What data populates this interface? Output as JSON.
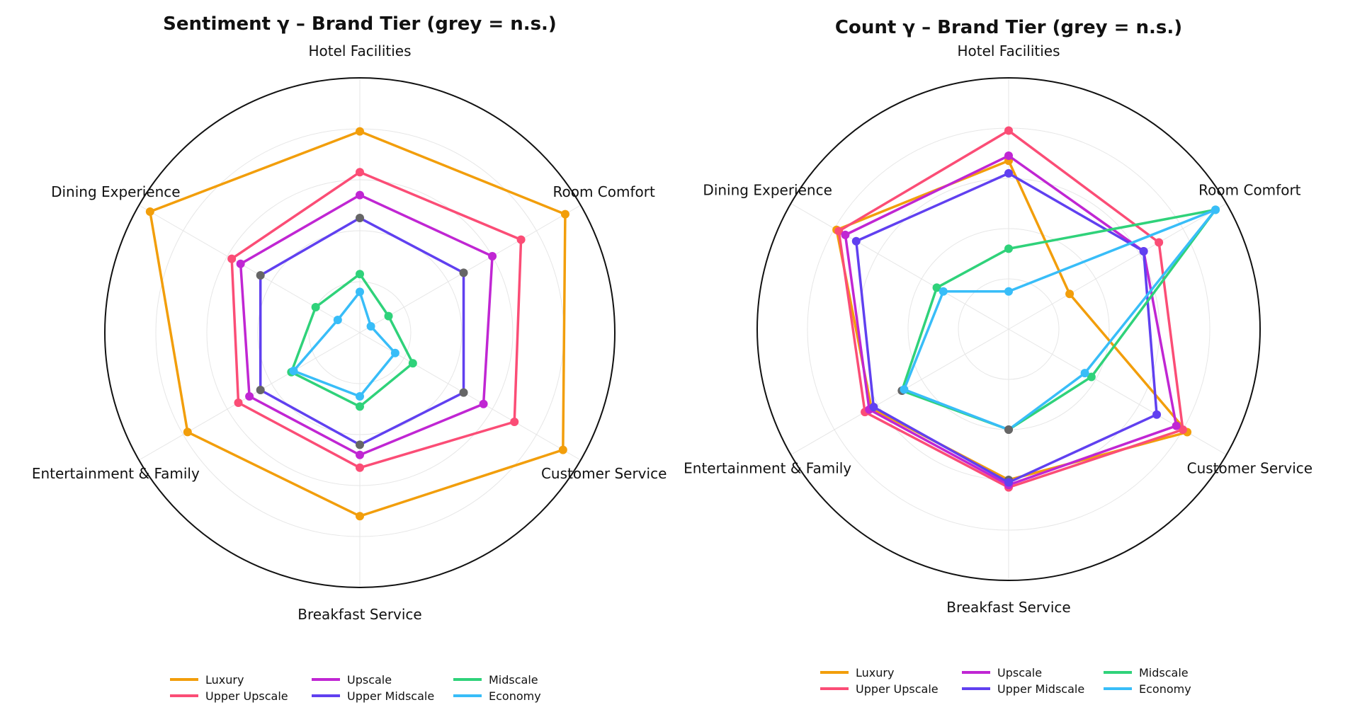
{
  "chart_data": [
    {
      "type": "radar",
      "title": "Sentiment γ – Brand Tier (grey = n.s.)",
      "axes": [
        "Hotel Facilities",
        "Room Comfort",
        "Customer Service",
        "Breakfast Service",
        "Entertainment & Family",
        "Dining Experience"
      ],
      "rlim": [
        0,
        1
      ],
      "grid": true,
      "legend_position": "bottom",
      "not_significant_color": "#666666",
      "series": [
        {
          "name": "Luxury",
          "color": "#f29e0b",
          "values": [
            0.79,
            0.93,
            0.92,
            0.72,
            0.78,
            0.95
          ],
          "ns": [
            false,
            false,
            false,
            false,
            false,
            false
          ]
        },
        {
          "name": "Upper Upscale",
          "color": "#fb4d76",
          "values": [
            0.63,
            0.73,
            0.7,
            0.53,
            0.55,
            0.58
          ],
          "ns": [
            false,
            false,
            false,
            false,
            false,
            false
          ]
        },
        {
          "name": "Upscale",
          "color": "#c026d3",
          "values": [
            0.54,
            0.6,
            0.56,
            0.48,
            0.5,
            0.54
          ],
          "ns": [
            false,
            false,
            false,
            false,
            false,
            false
          ]
        },
        {
          "name": "Upper Midscale",
          "color": "#6040f0",
          "values": [
            0.45,
            0.47,
            0.47,
            0.44,
            0.45,
            0.45
          ],
          "ns": [
            true,
            true,
            true,
            true,
            true,
            true
          ]
        },
        {
          "name": "Midscale",
          "color": "#2fd27a",
          "values": [
            0.23,
            0.13,
            0.24,
            0.29,
            0.31,
            0.2
          ],
          "ns": [
            false,
            false,
            false,
            false,
            false,
            false
          ]
        },
        {
          "name": "Economy",
          "color": "#38bdf8",
          "values": [
            0.16,
            0.05,
            0.16,
            0.25,
            0.3,
            0.1
          ],
          "ns": [
            false,
            false,
            false,
            false,
            false,
            false
          ]
        }
      ]
    },
    {
      "type": "radar",
      "title": "Count γ – Brand Tier (grey = n.s.)",
      "axes": [
        "Hotel Facilities",
        "Room Comfort",
        "Customer Service",
        "Breakfast Service",
        "Entertainment & Family",
        "Dining Experience"
      ],
      "rlim": [
        0,
        1
      ],
      "grid": true,
      "legend_position": "bottom",
      "not_significant_color": "#666666",
      "series": [
        {
          "name": "Luxury",
          "color": "#f29e0b",
          "values": [
            0.67,
            0.28,
            0.82,
            0.6,
            0.63,
            0.79
          ],
          "ns": [
            false,
            false,
            false,
            true,
            false,
            false
          ]
        },
        {
          "name": "Upper Upscale",
          "color": "#fb4d76",
          "values": [
            0.79,
            0.69,
            0.8,
            0.63,
            0.66,
            0.78
          ],
          "ns": [
            false,
            false,
            false,
            false,
            false,
            false
          ]
        },
        {
          "name": "Upscale",
          "color": "#c026d3",
          "values": [
            0.69,
            0.62,
            0.77,
            0.62,
            0.64,
            0.75
          ],
          "ns": [
            false,
            false,
            false,
            false,
            false,
            false
          ]
        },
        {
          "name": "Upper Midscale",
          "color": "#6040f0",
          "values": [
            0.62,
            0.62,
            0.68,
            0.61,
            0.62,
            0.7
          ],
          "ns": [
            false,
            false,
            false,
            false,
            false,
            false
          ]
        },
        {
          "name": "Midscale",
          "color": "#2fd27a",
          "values": [
            0.32,
            0.95,
            0.38,
            0.4,
            0.49,
            0.33
          ],
          "ns": [
            false,
            false,
            false,
            true,
            true,
            false
          ]
        },
        {
          "name": "Economy",
          "color": "#38bdf8",
          "values": [
            0.15,
            0.95,
            0.35,
            0.4,
            0.48,
            0.3
          ],
          "ns": [
            false,
            false,
            false,
            true,
            false,
            false
          ]
        }
      ]
    }
  ]
}
